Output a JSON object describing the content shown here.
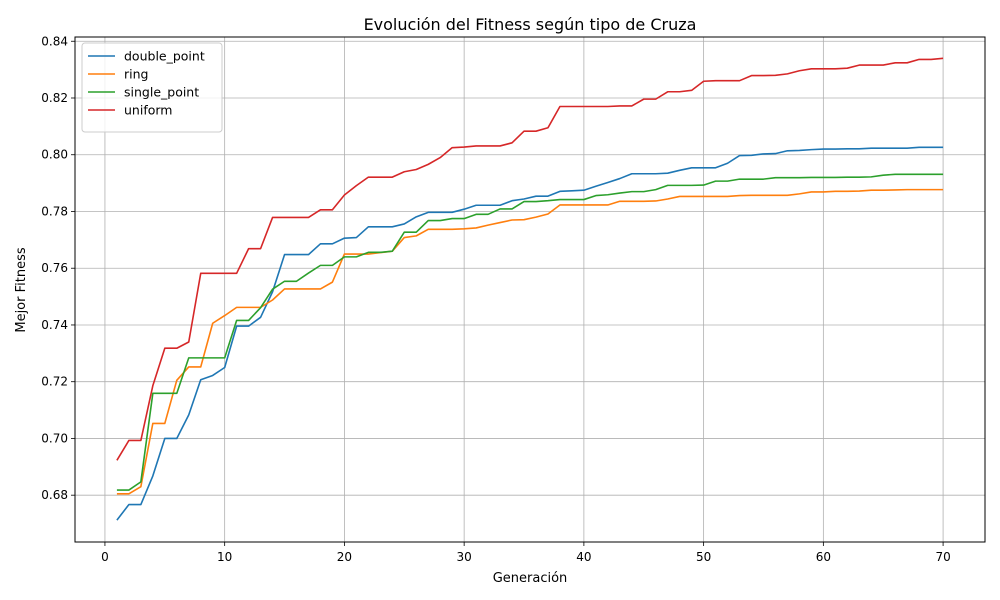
{
  "chart_data": {
    "type": "line",
    "title": "Evolución del Fitness según tipo de Cruza",
    "xlabel": "Generación",
    "ylabel": "Mejor Fitness",
    "xlim": [
      -2.5,
      73.5
    ],
    "ylim": [
      0.6635,
      0.8415
    ],
    "xticks": [
      0,
      10,
      20,
      30,
      40,
      50,
      60,
      70
    ],
    "yticks": [
      0.68,
      0.7,
      0.72,
      0.74,
      0.76,
      0.78,
      0.8,
      0.82,
      0.84
    ],
    "ytick_labels": [
      "0.68",
      "0.70",
      "0.72",
      "0.74",
      "0.76",
      "0.78",
      "0.80",
      "0.82",
      "0.84"
    ],
    "grid": true,
    "legend_position": "upper-left",
    "x": [
      1,
      2,
      3,
      4,
      5,
      6,
      7,
      8,
      9,
      10,
      11,
      12,
      13,
      14,
      15,
      16,
      17,
      18,
      19,
      20,
      21,
      22,
      23,
      24,
      25,
      26,
      27,
      28,
      29,
      30,
      31,
      32,
      33,
      34,
      35,
      36,
      37,
      38,
      39,
      40,
      41,
      42,
      43,
      44,
      45,
      46,
      47,
      48,
      49,
      50,
      51,
      52,
      53,
      54,
      55,
      56,
      57,
      58,
      59,
      60,
      61,
      62,
      63,
      64,
      65,
      66,
      67,
      68,
      69,
      70
    ],
    "series": [
      {
        "name": "double_point",
        "color": "#1f77b4",
        "values": [
          0.6712,
          0.6767,
          0.6767,
          0.6868,
          0.7,
          0.7,
          0.7083,
          0.7207,
          0.7222,
          0.725,
          0.7396,
          0.7396,
          0.7427,
          0.7517,
          0.7648,
          0.7648,
          0.7648,
          0.7686,
          0.7686,
          0.7706,
          0.7708,
          0.7746,
          0.7746,
          0.7746,
          0.7756,
          0.7781,
          0.7797,
          0.7797,
          0.7797,
          0.7808,
          0.7822,
          0.7822,
          0.7822,
          0.7838,
          0.7844,
          0.7854,
          0.7854,
          0.7871,
          0.7873,
          0.7875,
          0.7889,
          0.7902,
          0.7916,
          0.7933,
          0.7933,
          0.7933,
          0.7935,
          0.7945,
          0.7954,
          0.7954,
          0.7954,
          0.797,
          0.7997,
          0.7998,
          0.8003,
          0.8004,
          0.8014,
          0.8015,
          0.8018,
          0.802,
          0.802,
          0.8021,
          0.8021,
          0.8023,
          0.8023,
          0.8023,
          0.8023,
          0.8026,
          0.8026,
          0.8026
        ]
      },
      {
        "name": "ring",
        "color": "#ff7f0e",
        "values": [
          0.6805,
          0.6805,
          0.683,
          0.7053,
          0.7053,
          0.7205,
          0.7252,
          0.7252,
          0.7406,
          0.7433,
          0.7462,
          0.7462,
          0.7462,
          0.7488,
          0.7527,
          0.7527,
          0.7527,
          0.7527,
          0.7551,
          0.765,
          0.765,
          0.765,
          0.7655,
          0.766,
          0.7708,
          0.7714,
          0.7737,
          0.7737,
          0.7737,
          0.7739,
          0.7742,
          0.7752,
          0.7761,
          0.777,
          0.7771,
          0.778,
          0.7791,
          0.7823,
          0.7823,
          0.7823,
          0.7823,
          0.7823,
          0.7836,
          0.7836,
          0.7836,
          0.7837,
          0.7844,
          0.7853,
          0.7853,
          0.7853,
          0.7853,
          0.7853,
          0.7856,
          0.7857,
          0.7857,
          0.7857,
          0.7857,
          0.7862,
          0.7869,
          0.7869,
          0.7871,
          0.7871,
          0.7872,
          0.7875,
          0.7875,
          0.7876,
          0.7877,
          0.7877,
          0.7877,
          0.7877
        ]
      },
      {
        "name": "single_point",
        "color": "#2ca02c",
        "values": [
          0.6818,
          0.6818,
          0.6847,
          0.7159,
          0.7159,
          0.7159,
          0.7284,
          0.7284,
          0.7284,
          0.7284,
          0.7416,
          0.7416,
          0.7461,
          0.7526,
          0.7554,
          0.7554,
          0.7583,
          0.761,
          0.761,
          0.764,
          0.764,
          0.7656,
          0.7656,
          0.766,
          0.7727,
          0.7727,
          0.7768,
          0.7768,
          0.7775,
          0.7775,
          0.779,
          0.779,
          0.7809,
          0.7809,
          0.7835,
          0.7835,
          0.7838,
          0.7842,
          0.7842,
          0.7842,
          0.7856,
          0.7859,
          0.7865,
          0.787,
          0.787,
          0.7877,
          0.7892,
          0.7892,
          0.7892,
          0.7893,
          0.7907,
          0.7907,
          0.7914,
          0.7914,
          0.7914,
          0.7919,
          0.7919,
          0.7919,
          0.792,
          0.792,
          0.792,
          0.7921,
          0.7921,
          0.7922,
          0.7928,
          0.7931,
          0.7931,
          0.7931,
          0.7931,
          0.7931
        ]
      },
      {
        "name": "uniform",
        "color": "#d62728",
        "values": [
          0.6923,
          0.6993,
          0.6993,
          0.7186,
          0.7318,
          0.7318,
          0.734,
          0.7582,
          0.7582,
          0.7582,
          0.7582,
          0.7669,
          0.7669,
          0.7779,
          0.7779,
          0.7779,
          0.7779,
          0.7806,
          0.7806,
          0.7858,
          0.7891,
          0.7921,
          0.7921,
          0.7921,
          0.794,
          0.7948,
          0.7966,
          0.799,
          0.8025,
          0.8027,
          0.8031,
          0.8031,
          0.8031,
          0.8042,
          0.8083,
          0.8083,
          0.8095,
          0.817,
          0.817,
          0.817,
          0.817,
          0.817,
          0.8172,
          0.8172,
          0.8196,
          0.8196,
          0.8222,
          0.8222,
          0.8227,
          0.8259,
          0.8261,
          0.8261,
          0.8261,
          0.8279,
          0.8279,
          0.828,
          0.8285,
          0.8296,
          0.8303,
          0.8303,
          0.8303,
          0.8305,
          0.8316,
          0.8316,
          0.8316,
          0.8324,
          0.8324,
          0.8336,
          0.8336,
          0.834
        ]
      }
    ]
  }
}
